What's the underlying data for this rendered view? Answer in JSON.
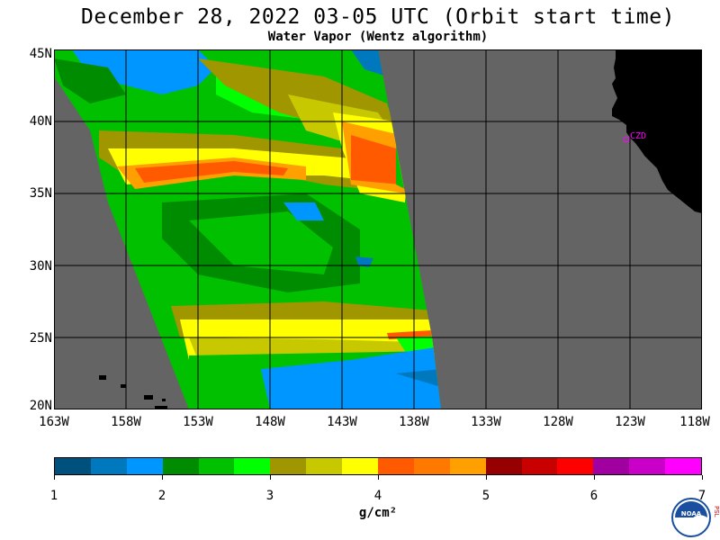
{
  "header": {
    "title": "December 28, 2022  03-05 UTC  (Orbit start time)",
    "subtitle": "Water Vapor (Wentz algorithm)"
  },
  "map": {
    "ocean_color": "#646464",
    "land_color": "#000000",
    "grid_color": "#000000",
    "lat_labels": [
      "45N",
      "40N",
      "35N",
      "30N",
      "25N",
      "20N"
    ],
    "lon_labels": [
      "163W",
      "158W",
      "153W",
      "148W",
      "143W",
      "138W",
      "133W",
      "128W",
      "123W",
      "118W"
    ],
    "station_label": "CZD",
    "station_color": "#ff00ff"
  },
  "colorbar": {
    "colors": [
      "#00507e",
      "#0078be",
      "#0096ff",
      "#008c00",
      "#00c000",
      "#00ff00",
      "#a09600",
      "#c8c800",
      "#ffff00",
      "#ff5a00",
      "#ff7800",
      "#ffa000",
      "#960000",
      "#c80000",
      "#ff0000",
      "#a000a0",
      "#c800c8",
      "#ff00ff"
    ],
    "tick_labels": [
      "1",
      "2",
      "3",
      "4",
      "5",
      "6",
      "7"
    ],
    "unit": "g/cm²"
  },
  "logos": {
    "noaa_text": "NOAA",
    "psl_text": "PSL"
  }
}
